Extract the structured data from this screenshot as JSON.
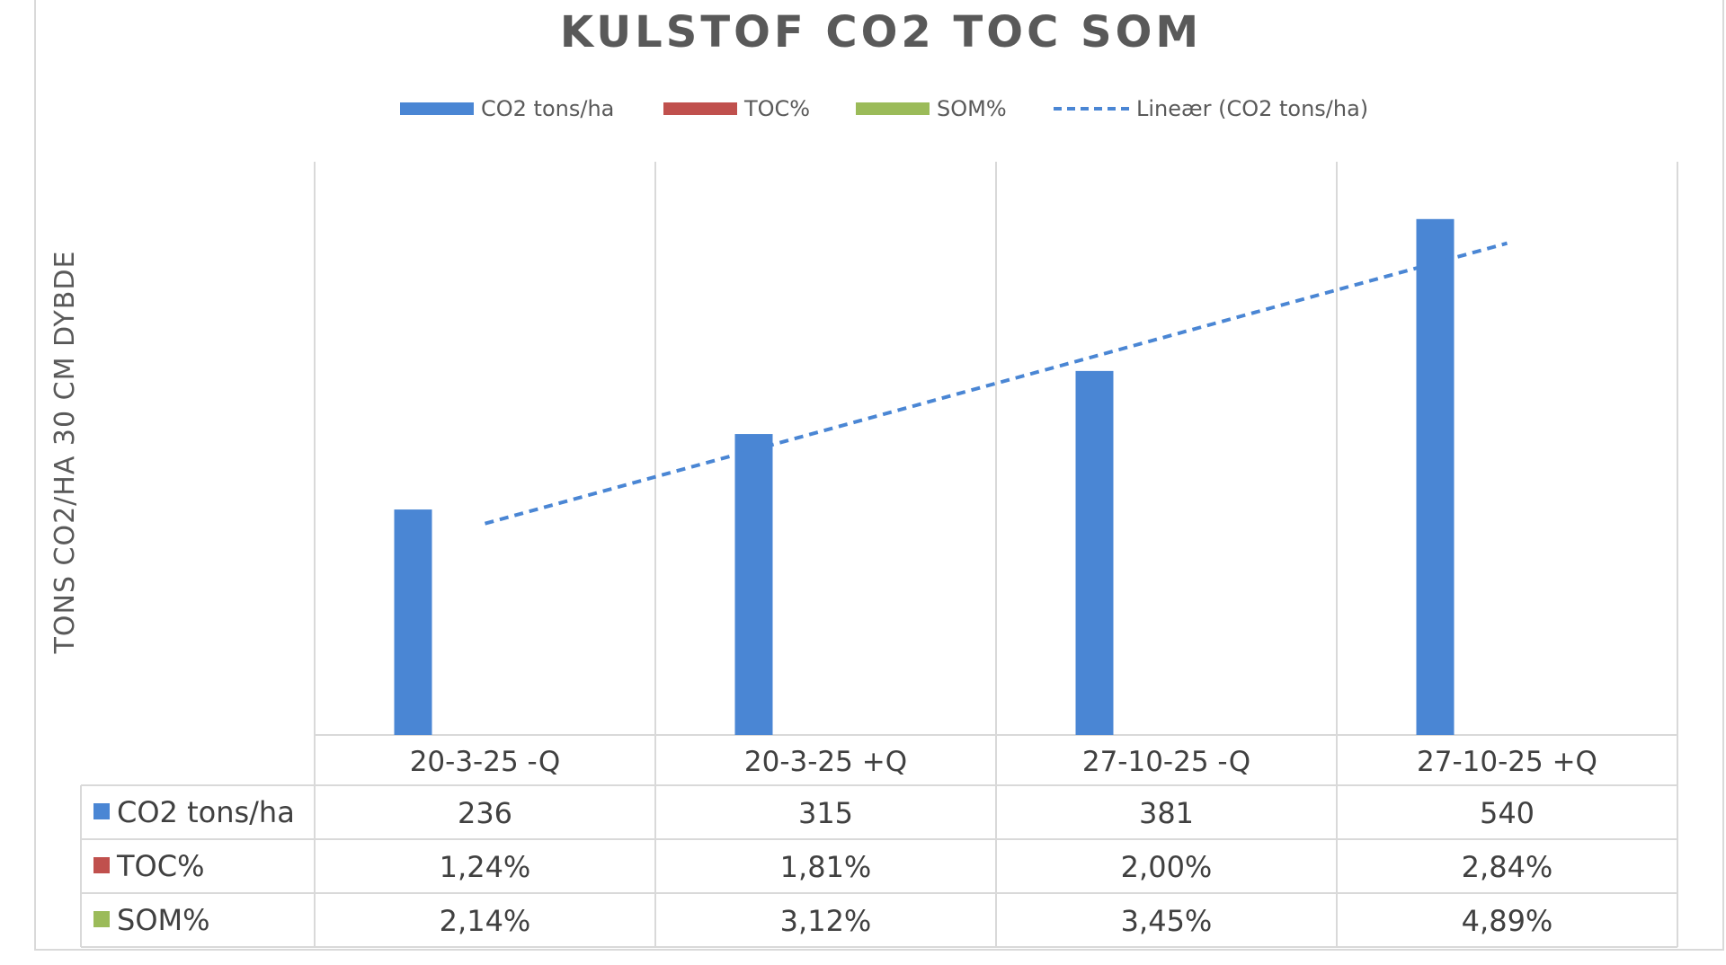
{
  "chart_data": {
    "type": "bar",
    "title": "KULSTOF  CO2  TOC  SOM",
    "ylabel": "TONS CO2/HA 30 CM DYBDE",
    "xlabel": "",
    "categories": [
      "20-3-25 -Q",
      "20-3-25 +Q",
      "27-10-25 -Q",
      "27-10-25 +Q"
    ],
    "ylim": [
      0,
      600
    ],
    "grid": true,
    "legend_position": "top",
    "series": [
      {
        "name": "CO2 tons/ha",
        "color": "#4a86d4",
        "values": [
          236,
          315,
          381,
          540
        ],
        "display": [
          "236",
          "315",
          "381",
          "540"
        ]
      },
      {
        "name": "TOC%",
        "color": "#c0504d",
        "values": [
          1.24,
          1.81,
          2.0,
          2.84
        ],
        "display": [
          "1,24%",
          "1,81%",
          "2,00%",
          "2,84%"
        ]
      },
      {
        "name": "SOM%",
        "color": "#9bbb59",
        "values": [
          2.14,
          3.12,
          3.45,
          4.89
        ],
        "display": [
          "2,14%",
          "3,12%",
          "3,45%",
          "4,89%"
        ]
      }
    ],
    "trendline": {
      "name": "Lineær (CO2 tons/ha)",
      "series": "CO2 tons/ha",
      "type": "linear",
      "color": "#4a86d4"
    },
    "data_table": true
  }
}
